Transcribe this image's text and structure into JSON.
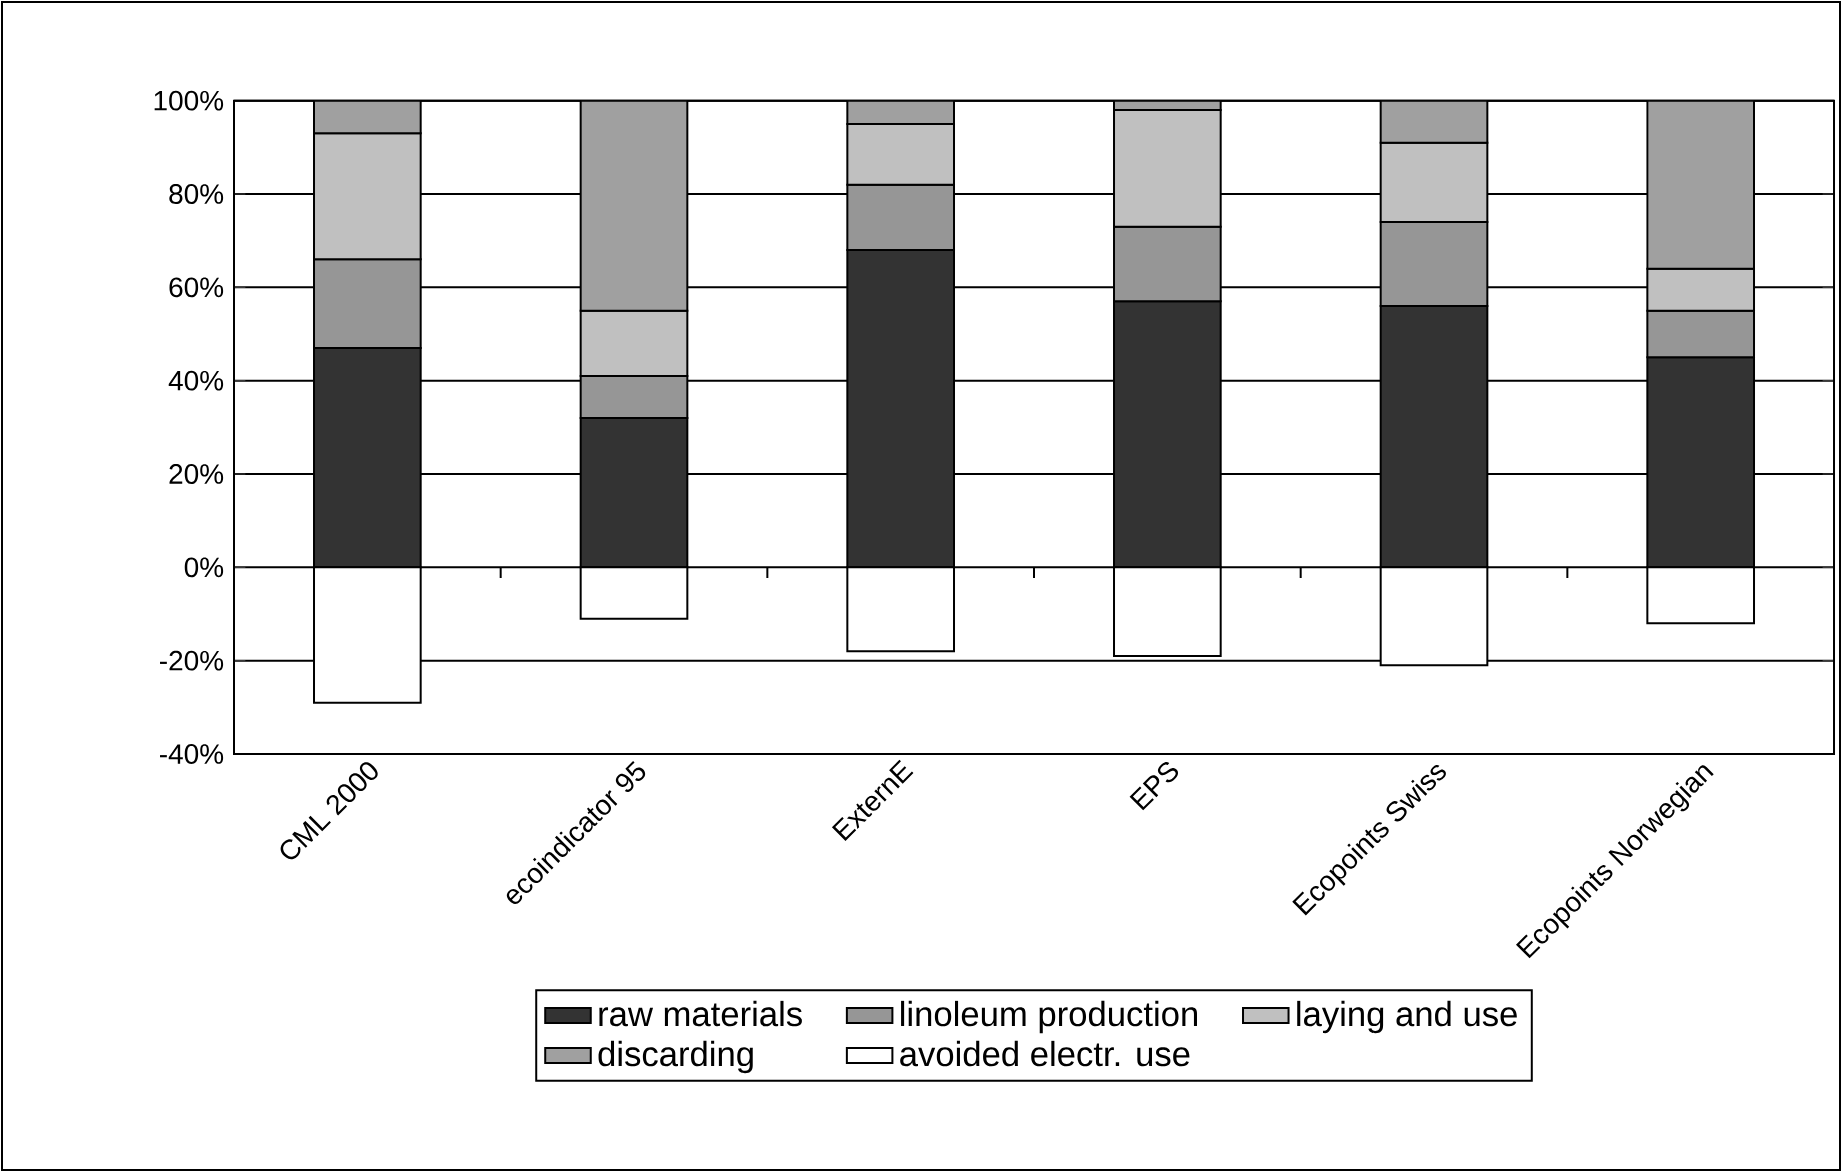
{
  "chart_data": {
    "type": "bar",
    "stacked": true,
    "categories": [
      "CML 2000",
      "ecoindicator 95",
      "ExternE",
      "EPS",
      "Ecopoints Swiss",
      "Ecopoints Norwegian"
    ],
    "series": [
      {
        "name": "raw materials",
        "color": "#333333",
        "values": [
          47,
          32,
          68,
          57,
          56,
          45
        ]
      },
      {
        "name": "linoleum production",
        "color": "#969696",
        "values": [
          19,
          9,
          14,
          16,
          18,
          10
        ]
      },
      {
        "name": "laying and use",
        "color": "#c0c0c0",
        "values": [
          27,
          14,
          13,
          25,
          17,
          9
        ]
      },
      {
        "name": "discarding",
        "color": "#a0a0a0",
        "values": [
          7,
          45,
          5,
          2,
          9,
          36
        ]
      },
      {
        "name": "avoided electr. use",
        "color": "#ffffff",
        "values": [
          -29,
          -11,
          -18,
          -19,
          -21,
          -12
        ]
      }
    ],
    "ylim": [
      -40,
      100
    ],
    "yticks": [
      {
        "value": -40,
        "label": "-40%"
      },
      {
        "value": -20,
        "label": "-20%"
      },
      {
        "value": 0,
        "label": "0%"
      },
      {
        "value": 20,
        "label": "20%"
      },
      {
        "value": 40,
        "label": "40%"
      },
      {
        "value": 60,
        "label": "60%"
      },
      {
        "value": 80,
        "label": "80%"
      },
      {
        "value": 100,
        "label": "100%"
      }
    ],
    "grid": "y",
    "legend": "bottom"
  }
}
